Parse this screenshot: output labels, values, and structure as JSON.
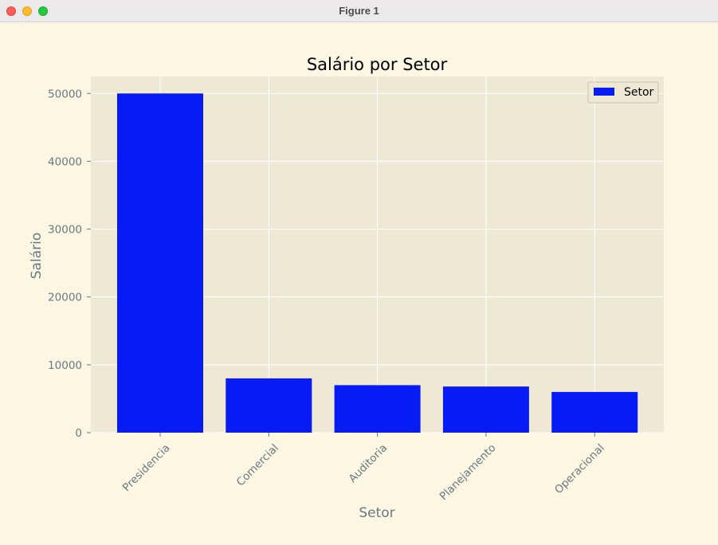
{
  "window": {
    "title": "Figure 1",
    "buttons": [
      "close",
      "minimize",
      "zoom"
    ]
  },
  "colors": {
    "figure_bg": "#fdf6e3",
    "axes_bg": "#eee8d5",
    "grid": "#ffffff",
    "bar": "#071cf5",
    "text": "#657b83",
    "title": "#000000"
  },
  "chart_data": {
    "type": "bar",
    "title": "Salário por Setor",
    "xlabel": "Setor",
    "ylabel": "Salário",
    "categories": [
      "Presidencia",
      "Comercial",
      "Auditoria",
      "Planejamento",
      "Operacional"
    ],
    "series": [
      {
        "name": "Setor",
        "values": [
          50000,
          8000,
          7000,
          6800,
          6000
        ]
      }
    ],
    "ylim": [
      0,
      52500
    ],
    "yticks": [
      0,
      10000,
      20000,
      30000,
      40000,
      50000
    ],
    "xtick_rotation": 45,
    "grid": true,
    "legend": "top-right"
  }
}
